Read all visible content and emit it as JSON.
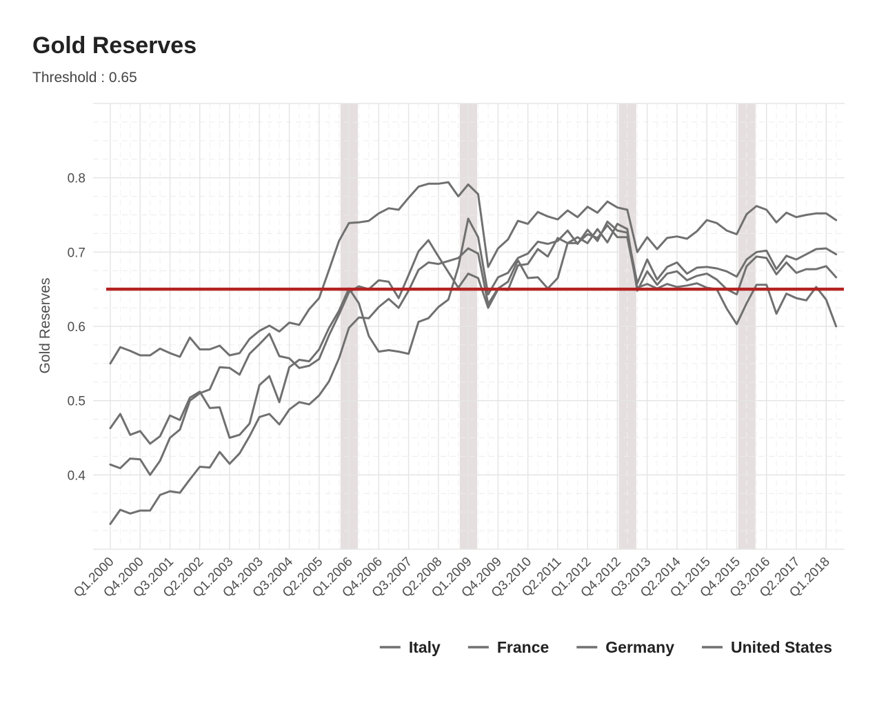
{
  "title": "Gold Reserves",
  "subtitle": "Threshold : 0.65",
  "chart_data": {
    "type": "line",
    "title": "Gold Reserves",
    "subtitle": "Threshold : 0.65",
    "xlabel": "",
    "ylabel": "Gold Reserves",
    "ylim": [
      0.3,
      0.9
    ],
    "yticks": [
      0.4,
      0.5,
      0.6,
      0.7,
      0.8
    ],
    "y_tick_labels": [
      "0.4",
      "0.5",
      "0.6",
      "0.7",
      "0.8"
    ],
    "x_start": "Q1.2000",
    "x_end": "Q2.2018",
    "x_tick_labels": [
      "Q1.2000",
      "Q4.2000",
      "Q3.2001",
      "Q2.2002",
      "Q1.2003",
      "Q4.2003",
      "Q3.2004",
      "Q2.2005",
      "Q1.2006",
      "Q4.2006",
      "Q3.2007",
      "Q2.2008",
      "Q1.2009",
      "Q4.2009",
      "Q3.2010",
      "Q2.2011",
      "Q1.2012",
      "Q4.2012",
      "Q3.2013",
      "Q2.2014",
      "Q1.2015",
      "Q4.2015",
      "Q3.2016",
      "Q2.2017",
      "Q1.2018"
    ],
    "threshold": 0.65,
    "threshold_color": "#b22222",
    "line_color": "#707070",
    "shaded_color": "#e6dfdf",
    "shaded_regions": [
      [
        "Q4.2005",
        "Q1.2006"
      ],
      [
        "Q4.2008",
        "Q1.2009"
      ],
      [
        "Q4.2012",
        "Q1.2013"
      ],
      [
        "Q4.2015",
        "Q1.2016"
      ]
    ],
    "grid": true,
    "legend_position": "bottom-right",
    "series": [
      {
        "name": "Italy",
        "values": [
          0.55,
          0.572,
          0.567,
          0.561,
          0.561,
          0.57,
          0.564,
          0.559,
          0.585,
          0.569,
          0.569,
          0.574,
          0.561,
          0.564,
          0.583,
          0.594,
          0.601,
          0.593,
          0.605,
          0.602,
          0.623,
          0.638,
          0.676,
          0.715,
          0.739,
          0.74,
          0.742,
          0.752,
          0.759,
          0.757,
          0.773,
          0.788,
          0.792,
          0.792,
          0.794,
          0.775,
          0.791,
          0.778,
          0.68,
          0.705,
          0.717,
          0.742,
          0.738,
          0.754,
          0.748,
          0.744,
          0.756,
          0.747,
          0.761,
          0.753,
          0.768,
          0.76,
          0.757,
          0.7,
          0.72,
          0.704,
          0.719,
          0.721,
          0.718,
          0.728,
          0.743,
          0.739,
          0.729,
          0.724,
          0.751,
          0.762,
          0.757,
          0.74,
          0.753,
          0.747,
          0.75,
          0.752,
          0.752,
          0.743
        ]
      },
      {
        "name": "France",
        "values": [
          0.463,
          0.482,
          0.454,
          0.459,
          0.442,
          0.452,
          0.48,
          0.474,
          0.504,
          0.512,
          0.49,
          0.491,
          0.45,
          0.454,
          0.469,
          0.521,
          0.533,
          0.498,
          0.545,
          0.555,
          0.553,
          0.569,
          0.598,
          0.621,
          0.651,
          0.631,
          0.587,
          0.566,
          0.568,
          0.566,
          0.563,
          0.606,
          0.611,
          0.626,
          0.636,
          0.68,
          0.745,
          0.72,
          0.643,
          0.666,
          0.672,
          0.692,
          0.698,
          0.714,
          0.711,
          0.715,
          0.729,
          0.711,
          0.73,
          0.715,
          0.741,
          0.729,
          0.726,
          0.658,
          0.69,
          0.663,
          0.68,
          0.686,
          0.671,
          0.679,
          0.68,
          0.678,
          0.674,
          0.667,
          0.69,
          0.7,
          0.702,
          0.677,
          0.695,
          0.69,
          0.697,
          0.704,
          0.705,
          0.697
        ]
      },
      {
        "name": "Germany",
        "values": [
          0.414,
          0.409,
          0.422,
          0.421,
          0.4,
          0.419,
          0.45,
          0.461,
          0.5,
          0.51,
          0.515,
          0.545,
          0.544,
          0.535,
          0.563,
          0.576,
          0.59,
          0.56,
          0.557,
          0.544,
          0.547,
          0.556,
          0.588,
          0.616,
          0.646,
          0.654,
          0.65,
          0.662,
          0.66,
          0.638,
          0.669,
          0.701,
          0.716,
          0.694,
          0.673,
          0.652,
          0.671,
          0.665,
          0.625,
          0.65,
          0.649,
          0.682,
          0.684,
          0.704,
          0.694,
          0.719,
          0.712,
          0.72,
          0.712,
          0.731,
          0.713,
          0.738,
          0.731,
          0.648,
          0.674,
          0.656,
          0.671,
          0.674,
          0.662,
          0.668,
          0.671,
          0.663,
          0.65,
          0.643,
          0.681,
          0.694,
          0.692,
          0.67,
          0.686,
          0.672,
          0.677,
          0.677,
          0.681,
          0.666
        ]
      },
      {
        "name": "United States",
        "values": [
          0.334,
          0.353,
          0.348,
          0.352,
          0.352,
          0.373,
          0.378,
          0.376,
          0.394,
          0.411,
          0.41,
          0.431,
          0.415,
          0.429,
          0.452,
          0.478,
          0.482,
          0.468,
          0.488,
          0.498,
          0.495,
          0.507,
          0.526,
          0.557,
          0.598,
          0.612,
          0.611,
          0.626,
          0.637,
          0.625,
          0.648,
          0.676,
          0.686,
          0.684,
          0.688,
          0.692,
          0.705,
          0.698,
          0.63,
          0.651,
          0.66,
          0.689,
          0.665,
          0.666,
          0.651,
          0.665,
          0.712,
          0.712,
          0.724,
          0.719,
          0.736,
          0.72,
          0.72,
          0.652,
          0.657,
          0.651,
          0.657,
          0.653,
          0.655,
          0.658,
          0.652,
          0.65,
          0.624,
          0.603,
          0.631,
          0.656,
          0.656,
          0.617,
          0.644,
          0.638,
          0.635,
          0.653,
          0.636,
          0.6
        ]
      }
    ]
  }
}
